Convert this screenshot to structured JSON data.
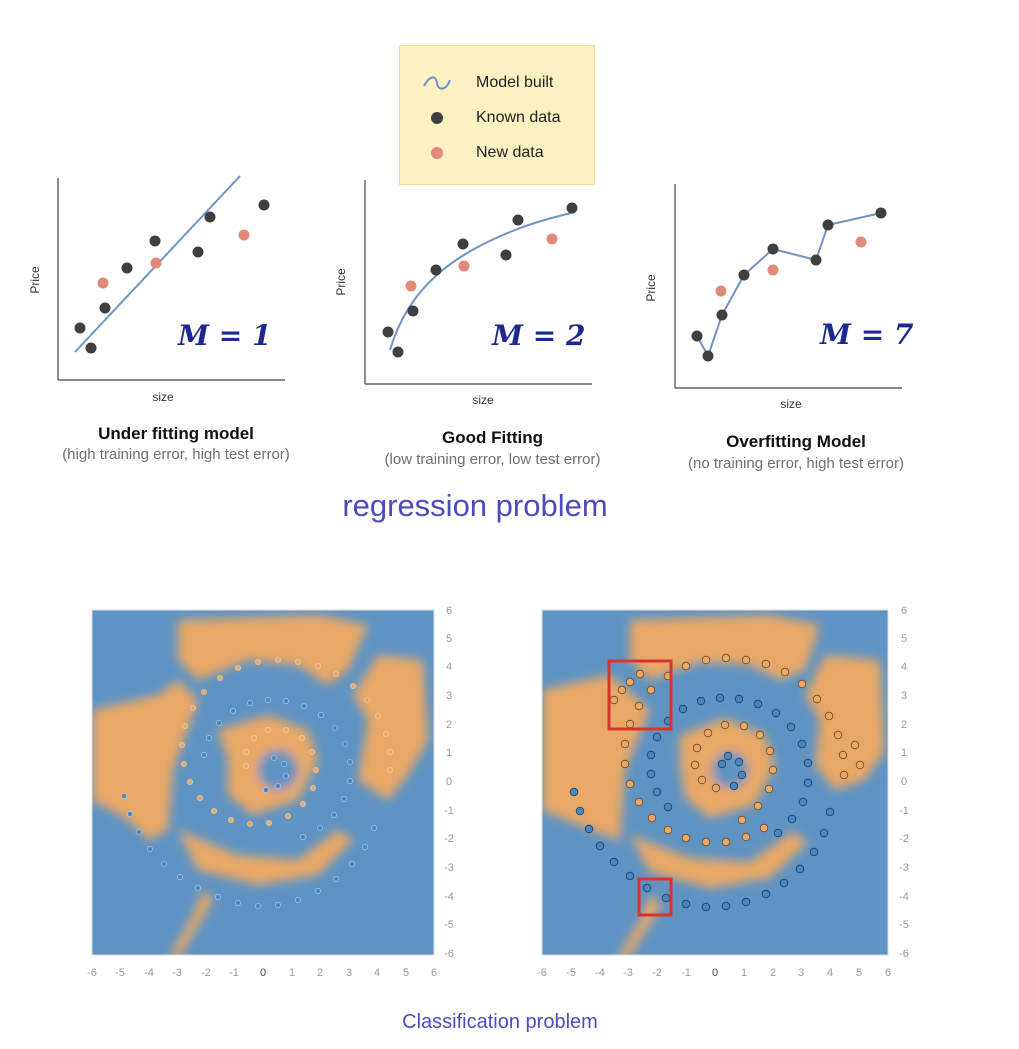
{
  "legend": {
    "items": [
      {
        "label": "Model built",
        "symbol": "curve",
        "color": "#6f93c4"
      },
      {
        "label": "Known data",
        "symbol": "dot",
        "color": "#3f3f3f"
      },
      {
        "label": "New data",
        "symbol": "dot",
        "color": "#e08a7a"
      }
    ]
  },
  "regression": {
    "section_title": "regression problem",
    "panels": [
      {
        "x_label": "size",
        "y_label": "Price",
        "m_label": "M = 1",
        "title": "Under fitting model",
        "subtitle": "(high training error, high test error)"
      },
      {
        "x_label": "size",
        "y_label": "Price",
        "m_label": "M = 2",
        "title": "Good Fitting",
        "subtitle": "(low training error, low test error)"
      },
      {
        "x_label": "size",
        "y_label": "Price",
        "m_label": "M = 7",
        "title": "Overfitting Model",
        "subtitle": "(no training error, high test error)"
      }
    ]
  },
  "classification": {
    "section_title": "Classification problem",
    "panels": [
      {
        "x_ticks": [
          "-6",
          "-5",
          "-4",
          "-3",
          "-2",
          "-1",
          "0",
          "1",
          "2",
          "3",
          "4",
          "5",
          "6"
        ],
        "y_ticks": [
          "6",
          "5",
          "4",
          "3",
          "2",
          "1",
          "0",
          "-1",
          "-2",
          "-3",
          "-4",
          "-5",
          "-6"
        ]
      },
      {
        "x_ticks": [
          "-6",
          "-5",
          "-4",
          "-3",
          "-2",
          "-1",
          "0",
          "1",
          "2",
          "3",
          "4",
          "5",
          "6"
        ],
        "y_ticks": [
          "6",
          "5",
          "4",
          "3",
          "2",
          "1",
          "0",
          "-1",
          "-2",
          "-3",
          "-4",
          "-5",
          "-6"
        ]
      }
    ]
  },
  "colors": {
    "model_line": "#6f93c4",
    "known": "#3f3f3f",
    "new": "#e08a7a",
    "class_blue": "#5f93c3",
    "class_orange": "#e9a866",
    "highlight_box": "#d9342b",
    "section_title": "#4a4dbd"
  }
}
